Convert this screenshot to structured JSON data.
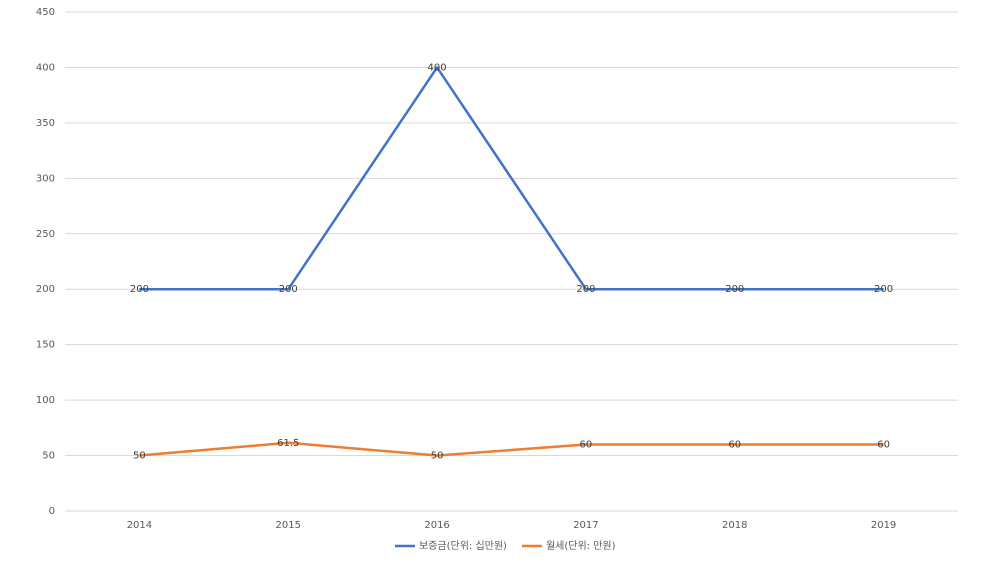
{
  "chart_data": {
    "type": "line",
    "categories": [
      "2014",
      "2015",
      "2016",
      "2017",
      "2018",
      "2019"
    ],
    "series": [
      {
        "name": "보증금(단위: 십만원)",
        "color": "#4472c4",
        "values": [
          200,
          200,
          400,
          200,
          200,
          200
        ]
      },
      {
        "name": "월세(단위: 만원)",
        "color": "#ed7d31",
        "values": [
          50,
          61.5,
          50,
          60,
          60,
          60
        ]
      }
    ],
    "ylim": [
      0,
      450
    ],
    "yticks": [
      0,
      50,
      100,
      150,
      200,
      250,
      300,
      350,
      400,
      450
    ],
    "grid": true,
    "data_labels": true,
    "legend": "bottom"
  }
}
